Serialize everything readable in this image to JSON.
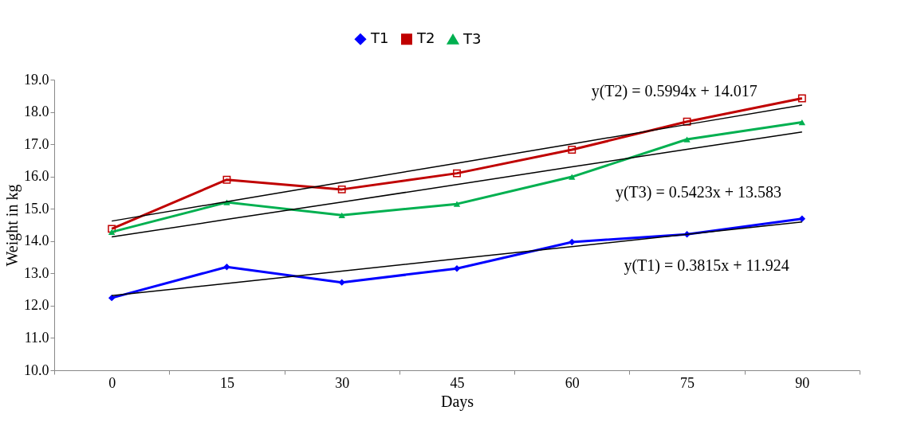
{
  "chart_data": {
    "type": "line",
    "xlabel": "Days",
    "ylabel": "Weight in kg",
    "categories": [
      "0",
      "15",
      "30",
      "45",
      "60",
      "75",
      "90"
    ],
    "ylim": [
      10,
      19
    ],
    "yticks": [
      {
        "value": 10,
        "label": "10.0"
      },
      {
        "value": 11,
        "label": "11.0"
      },
      {
        "value": 12,
        "label": "12.0"
      },
      {
        "value": 13,
        "label": "13.0"
      },
      {
        "value": 14,
        "label": "14.0"
      },
      {
        "value": 15,
        "label": "15.0"
      },
      {
        "value": 16,
        "label": "16.0"
      },
      {
        "value": 17,
        "label": "17.0"
      },
      {
        "value": 18,
        "label": "18.0"
      },
      {
        "value": 19,
        "label": "19.0"
      }
    ],
    "grid": false,
    "legend": "top",
    "line_style": "solid",
    "series": [
      {
        "name": "T1",
        "color": "#0000ff",
        "marker": "diamond",
        "values": [
          12.24,
          13.2,
          12.72,
          13.15,
          13.97,
          14.21,
          14.69
        ]
      },
      {
        "name": "T2",
        "color": "#c00000",
        "marker": "square",
        "values": [
          14.38,
          15.9,
          15.6,
          16.1,
          16.83,
          17.7,
          18.42
        ]
      },
      {
        "name": "T3",
        "color": "#00b050",
        "marker": "triangle",
        "values": [
          14.28,
          15.2,
          14.8,
          15.15,
          15.99,
          17.15,
          17.68
        ]
      },
      {
        "type": "line",
        "color": "#000000",
        "marker": "none",
        "values": [
          12.31,
          12.69,
          13.07,
          13.45,
          13.83,
          14.21,
          14.59
        ]
      },
      {
        "type": "line",
        "color": "#000000",
        "marker": "none",
        "values": [
          14.62,
          15.22,
          15.82,
          16.41,
          17.01,
          17.61,
          18.21
        ]
      },
      {
        "type": "line",
        "color": "#000000",
        "marker": "none",
        "values": [
          14.13,
          14.67,
          15.21,
          15.75,
          16.3,
          16.84,
          17.38
        ]
      }
    ],
    "annotations": [
      "y(T2) = 0.5994x + 14.017",
      "y(T3) = 0.5423x + 13.583",
      "y(T1) = 0.3815x + 11.924"
    ]
  }
}
